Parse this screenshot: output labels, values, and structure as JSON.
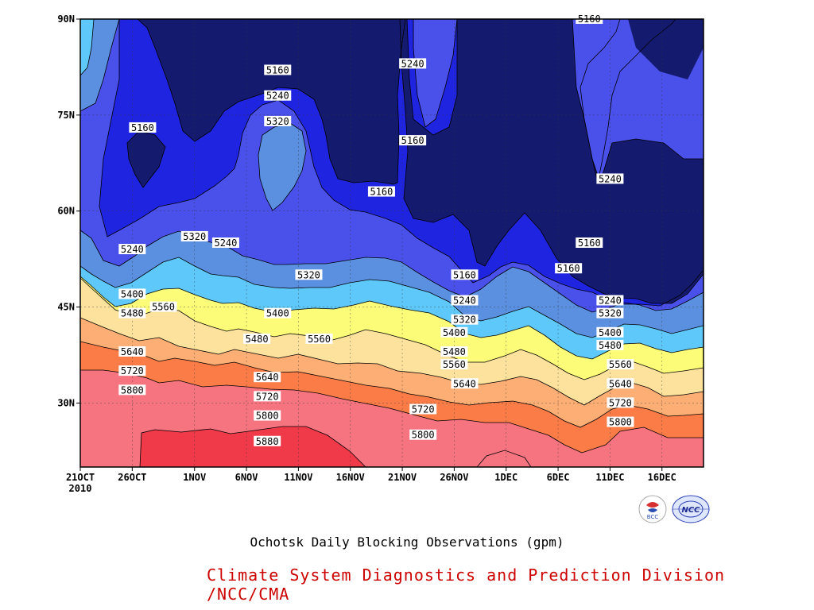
{
  "caption": "Ochotsk Daily Blocking Observations (gpm)",
  "credit": "Climate System Diagnostics and Prediction Division /NCC/CMA",
  "logos": [
    {
      "name": "bcc-logo",
      "text": "BCC"
    },
    {
      "name": "ncc-logo",
      "text": "NCC"
    }
  ],
  "chart_data": {
    "type": "heatmap",
    "title": "Ochotsk Daily Blocking Observations (gpm)",
    "x_axis": {
      "ticks": [
        "21OCT",
        "26OCT",
        "1NOV",
        "6NOV",
        "11NOV",
        "16NOV",
        "21NOV",
        "26NOV",
        "1DEC",
        "6DEC",
        "11DEC",
        "16DEC"
      ],
      "year_label": "2010",
      "range": [
        "2010-10-21",
        "2010-12-20"
      ]
    },
    "y_axis": {
      "ticks": [
        "30N",
        "45N",
        "60N",
        "75N",
        "90N"
      ],
      "range": [
        20,
        90
      ]
    },
    "grid": "dotted",
    "contour_levels": [
      5160,
      5240,
      5320,
      5400,
      5480,
      5560,
      5640,
      5720,
      5800,
      5880
    ],
    "colors": {
      "below_5160": "#141a6e",
      "5160_5240": "#1e24e0",
      "5240_5320": "#4a50ea",
      "5320_5400": "#5b8fe0",
      "5400_5480": "#5ec8fa",
      "5480_5560": "#fcfc78",
      "5560_5640": "#fce29c",
      "5640_5720": "#fcae74",
      "5720_5800": "#fc7c48",
      "5800_5880": "#f67480",
      "above_5880": "#f03a4a"
    },
    "contour_labels": [
      {
        "value": "5160",
        "date": "2010-11-09",
        "lat": 82
      },
      {
        "value": "5240",
        "date": "2010-11-09",
        "lat": 78
      },
      {
        "value": "5320",
        "date": "2010-11-09",
        "lat": 74
      },
      {
        "value": "5160",
        "date": "2010-10-27",
        "lat": 73
      },
      {
        "value": "5240",
        "date": "2010-11-22",
        "lat": 83
      },
      {
        "value": "5160",
        "date": "2010-11-22",
        "lat": 71
      },
      {
        "value": "5160",
        "date": "2010-11-19",
        "lat": 63
      },
      {
        "value": "5160",
        "date": "2010-12-09",
        "lat": 90
      },
      {
        "value": "5240",
        "date": "2010-12-11",
        "lat": 65
      },
      {
        "value": "5160",
        "date": "2010-12-09",
        "lat": 55
      },
      {
        "value": "5240",
        "date": "2010-10-26",
        "lat": 54
      },
      {
        "value": "5320",
        "date": "2010-11-01",
        "lat": 56
      },
      {
        "value": "5240",
        "date": "2010-11-04",
        "lat": 55
      },
      {
        "value": "5320",
        "date": "2010-11-12",
        "lat": 50
      },
      {
        "value": "5160",
        "date": "2010-11-27",
        "lat": 50
      },
      {
        "value": "5160",
        "date": "2010-12-07",
        "lat": 51
      },
      {
        "value": "5400",
        "date": "2010-10-26",
        "lat": 47
      },
      {
        "value": "5480",
        "date": "2010-10-26",
        "lat": 44
      },
      {
        "value": "5560",
        "date": "2010-10-29",
        "lat": 45
      },
      {
        "value": "5400",
        "date": "2010-11-09",
        "lat": 44
      },
      {
        "value": "5480",
        "date": "2010-11-07",
        "lat": 40
      },
      {
        "value": "5560",
        "date": "2010-11-13",
        "lat": 40
      },
      {
        "value": "5240",
        "date": "2010-11-27",
        "lat": 46
      },
      {
        "value": "5320",
        "date": "2010-11-27",
        "lat": 43
      },
      {
        "value": "5400",
        "date": "2010-11-26",
        "lat": 41
      },
      {
        "value": "5480",
        "date": "2010-11-26",
        "lat": 38
      },
      {
        "value": "5560",
        "date": "2010-11-26",
        "lat": 36
      },
      {
        "value": "5640",
        "date": "2010-11-27",
        "lat": 33
      },
      {
        "value": "5240",
        "date": "2010-12-11",
        "lat": 46
      },
      {
        "value": "5320",
        "date": "2010-12-11",
        "lat": 44
      },
      {
        "value": "5400",
        "date": "2010-12-11",
        "lat": 41
      },
      {
        "value": "5480",
        "date": "2010-12-11",
        "lat": 39
      },
      {
        "value": "5560",
        "date": "2010-12-12",
        "lat": 36
      },
      {
        "value": "5640",
        "date": "2010-12-12",
        "lat": 33
      },
      {
        "value": "5720",
        "date": "2010-12-12",
        "lat": 30
      },
      {
        "value": "5800",
        "date": "2010-12-12",
        "lat": 27
      },
      {
        "value": "5640",
        "date": "2010-10-26",
        "lat": 38
      },
      {
        "value": "5720",
        "date": "2010-10-26",
        "lat": 35
      },
      {
        "value": "5800",
        "date": "2010-10-26",
        "lat": 32
      },
      {
        "value": "5640",
        "date": "2010-11-08",
        "lat": 34
      },
      {
        "value": "5720",
        "date": "2010-11-08",
        "lat": 31
      },
      {
        "value": "5800",
        "date": "2010-11-08",
        "lat": 28
      },
      {
        "value": "5880",
        "date": "2010-11-08",
        "lat": 24
      },
      {
        "value": "5720",
        "date": "2010-11-23",
        "lat": 29
      },
      {
        "value": "5800",
        "date": "2010-11-23",
        "lat": 25
      }
    ]
  }
}
